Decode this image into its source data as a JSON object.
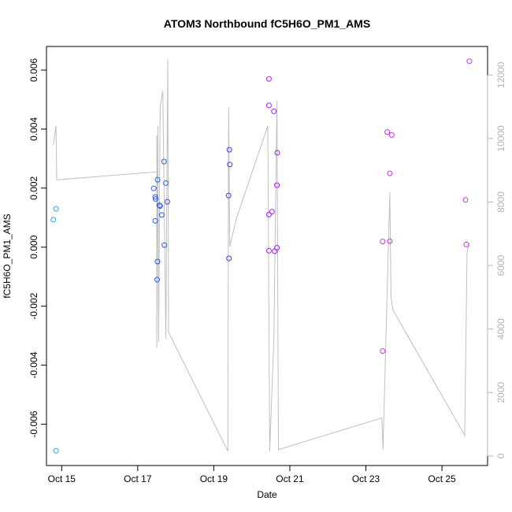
{
  "chart_data": {
    "type": "scatter",
    "title": "ATOM3 Northbound fC5H6O_PM1_AMS",
    "xlabel": "Date",
    "ylabel": "fC5H6O_PM1_AMS",
    "xlim": [
      14.6,
      26.2
    ],
    "ylim": [
      -0.0074,
      0.0068
    ],
    "y2lim": [
      -300,
      12900
    ],
    "x_ticks": [
      {
        "value": 15,
        "label": "Oct 15"
      },
      {
        "value": 17,
        "label": "Oct 17"
      },
      {
        "value": 19,
        "label": "Oct 19"
      },
      {
        "value": 21,
        "label": "Oct 21"
      },
      {
        "value": 23,
        "label": "Oct 23"
      },
      {
        "value": 25,
        "label": "Oct 25"
      }
    ],
    "y_ticks": [
      {
        "value": -0.006,
        "label": "-0.006"
      },
      {
        "value": -0.004,
        "label": "-0.004"
      },
      {
        "value": -0.002,
        "label": "-0.002"
      },
      {
        "value": 0.0,
        "label": "0.000"
      },
      {
        "value": 0.002,
        "label": "0.002"
      },
      {
        "value": 0.004,
        "label": "0.004"
      },
      {
        "value": 0.006,
        "label": "0.006"
      }
    ],
    "y2_ticks": [
      {
        "value": 0,
        "label": "0"
      },
      {
        "value": 2000,
        "label": "2000"
      },
      {
        "value": 4000,
        "label": "4000"
      },
      {
        "value": 6000,
        "label": "6000"
      },
      {
        "value": 8000,
        "label": "8000"
      },
      {
        "value": 10000,
        "label": "10000"
      },
      {
        "value": 12000,
        "label": "12000"
      }
    ],
    "grid": false,
    "colors": {
      "line": "#bfbfbf",
      "right_axis": "#b3b3b3"
    },
    "series": [
      {
        "color": "#29a9e6",
        "points": [
          [
            14.78,
            0.00093
          ],
          [
            14.85,
            0.0013
          ],
          [
            14.85,
            -0.0069
          ]
        ]
      },
      {
        "color": "#2b5ce8",
        "points": [
          [
            17.42,
            0.00199
          ],
          [
            17.46,
            0.0017
          ],
          [
            17.47,
            0.00163
          ],
          [
            17.46,
            0.00089
          ],
          [
            17.52,
            0.00228
          ],
          [
            17.57,
            0.00142
          ],
          [
            17.59,
            0.00139
          ],
          [
            17.63,
            0.00109
          ],
          [
            17.52,
            -0.00049
          ],
          [
            17.51,
            -0.0011
          ],
          [
            17.69,
            0.0029
          ],
          [
            17.7,
            7e-05
          ],
          [
            17.74,
            0.00217
          ],
          [
            17.78,
            0.00154
          ]
        ]
      },
      {
        "color": "#3a3fe8",
        "points": [
          [
            19.41,
            0.0033
          ],
          [
            19.42,
            0.0028
          ],
          [
            19.39,
            0.00175
          ],
          [
            19.4,
            -0.00038
          ]
        ]
      },
      {
        "color": "#a020f0",
        "points": [
          [
            20.45,
            0.0057
          ],
          [
            20.45,
            0.0048
          ],
          [
            20.58,
            0.0046
          ],
          [
            20.67,
            0.0032
          ],
          [
            20.66,
            0.0021
          ],
          [
            20.53,
            0.0012
          ],
          [
            20.45,
            0.0011
          ],
          [
            20.45,
            -0.00012
          ],
          [
            20.6,
            -0.00014
          ],
          [
            20.66,
            -2e-05
          ]
        ]
      },
      {
        "color": "#cc33e6",
        "points": [
          [
            23.44,
            0.00019
          ],
          [
            23.44,
            -0.00352
          ],
          [
            23.56,
            0.0039
          ],
          [
            23.63,
            0.0025
          ],
          [
            23.63,
            0.0002
          ],
          [
            23.68,
            0.0038
          ],
          [
            25.62,
            0.0016
          ],
          [
            25.64,
            9e-05
          ],
          [
            25.72,
            0.0063
          ]
        ]
      }
    ],
    "line_series": {
      "axis": "right",
      "points": [
        [
          14.78,
          9800
        ],
        [
          14.85,
          10400
        ],
        [
          14.87,
          8700
        ],
        [
          17.5,
          8950
        ],
        [
          17.5,
          10100
        ],
        [
          17.5,
          3400
        ],
        [
          17.53,
          10400
        ],
        [
          17.55,
          3600
        ],
        [
          17.59,
          11000
        ],
        [
          17.66,
          11500
        ],
        [
          17.74,
          3700
        ],
        [
          17.79,
          12500
        ],
        [
          17.81,
          3900
        ],
        [
          19.37,
          150
        ],
        [
          19.39,
          11000
        ],
        [
          19.42,
          6600
        ],
        [
          19.6,
          7500
        ],
        [
          20.42,
          10400
        ],
        [
          20.47,
          150
        ],
        [
          20.58,
          3700
        ],
        [
          20.66,
          11200
        ],
        [
          20.7,
          200
        ],
        [
          23.42,
          1200
        ],
        [
          23.45,
          200
        ],
        [
          23.63,
          8300
        ],
        [
          23.66,
          5000
        ],
        [
          23.71,
          4600
        ],
        [
          25.6,
          650
        ],
        [
          25.66,
          6400
        ],
        [
          25.72,
          6700
        ]
      ]
    }
  }
}
